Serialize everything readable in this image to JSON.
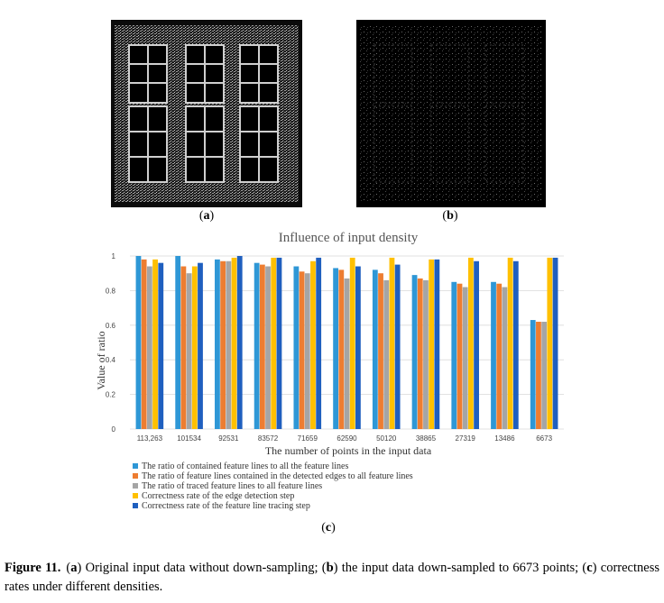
{
  "panels": {
    "a": {
      "label_open": "(",
      "label_letter": "a",
      "label_close": ")"
    },
    "b": {
      "label_open": "(",
      "label_letter": "b",
      "label_close": ")"
    },
    "c": {
      "label_open": "(",
      "label_letter": "c",
      "label_close": ")"
    }
  },
  "chart_data": {
    "type": "bar",
    "title": "Influence of input density",
    "xlabel": "The number of points in the input data",
    "ylabel": "Value of ratio",
    "ylim": [
      0,
      1
    ],
    "yticks": [
      "0",
      "0.2",
      "0.4",
      "0.6",
      "0.8",
      "1"
    ],
    "grid": true,
    "legend_position": "bottom",
    "categories": [
      "113,263",
      "101534",
      "92531",
      "83572",
      "71659",
      "62590",
      "50120",
      "38865",
      "27319",
      "13486",
      "6673"
    ],
    "series": [
      {
        "name": "The ratio of contained feature lines to all the feature lines",
        "color": "#2e97d6",
        "values": [
          1.0,
          1.0,
          0.98,
          0.96,
          0.94,
          0.93,
          0.92,
          0.89,
          0.85,
          0.85,
          0.63
        ]
      },
      {
        "name": "The ratio of feature lines contained in the detected edges to all feature lines",
        "color": "#ed7d31",
        "values": [
          0.98,
          0.94,
          0.97,
          0.95,
          0.91,
          0.92,
          0.9,
          0.87,
          0.84,
          0.84,
          0.62
        ]
      },
      {
        "name": "The ratio of traced feature lines to all feature lines",
        "color": "#a5a5a5",
        "values": [
          0.94,
          0.9,
          0.97,
          0.94,
          0.9,
          0.87,
          0.86,
          0.86,
          0.82,
          0.82,
          0.62
        ]
      },
      {
        "name": "Correctness rate of the edge detection step",
        "color": "#ffc000",
        "values": [
          0.98,
          0.94,
          0.99,
          0.99,
          0.97,
          0.99,
          0.99,
          0.98,
          0.99,
          0.99,
          0.99
        ]
      },
      {
        "name": "Correctness rate of the feature line tracing step",
        "color": "#1f5fbf",
        "values": [
          0.96,
          0.96,
          1.0,
          0.99,
          0.99,
          0.94,
          0.95,
          0.98,
          0.97,
          0.97,
          0.99
        ]
      }
    ]
  },
  "caption": {
    "figure_label": "Figure 11.",
    "p1_open": "(",
    "p1_letter": "a",
    "p1_text": ") Original input data without down-sampling; (",
    "p2_letter": "b",
    "p2_text": ") the input data down-sampled to 6673 points; (",
    "p3_letter": "c",
    "p3_text": ") correctness rates under different densities."
  }
}
